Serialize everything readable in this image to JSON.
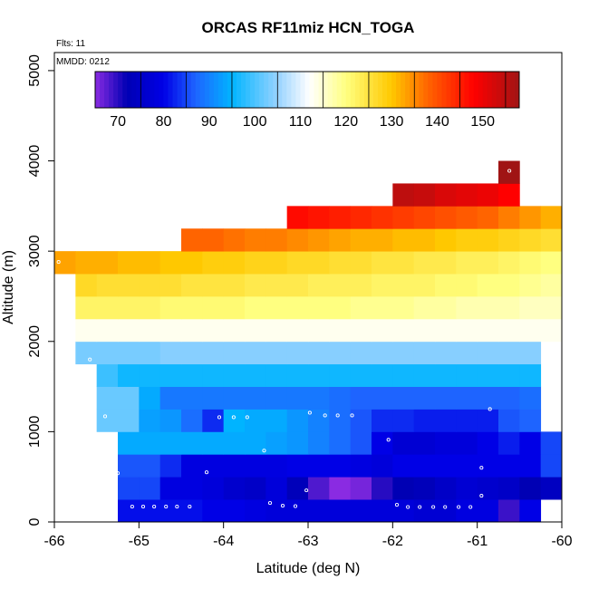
{
  "chart_data": {
    "type": "heatmap",
    "title": "ORCAS RF11miz HCN_TOGA",
    "annotations": {
      "flts": "Flts: 11",
      "mmdd": "MMDD: 0212"
    },
    "xlabel": "Latitude (deg N)",
    "ylabel": "Altitude (m)",
    "xlim": [
      -66,
      -60
    ],
    "ylim": [
      0,
      5200
    ],
    "xticks": [
      -66,
      -65,
      -64,
      -63,
      -62,
      -61,
      -60
    ],
    "xtick_labels": [
      "-66",
      "-65",
      "-64",
      "-63",
      "-62",
      "-61",
      "-60"
    ],
    "yticks": [
      0,
      1000,
      2000,
      3000,
      4000,
      5000
    ],
    "ytick_labels": [
      "0",
      "1000",
      "2000",
      "3000",
      "4000",
      "5000"
    ],
    "cell_width_deg": 0.25,
    "cell_height_m": 250,
    "colorbar": {
      "range": [
        65,
        158
      ],
      "ticks": [
        70,
        80,
        90,
        100,
        110,
        120,
        130,
        140,
        150
      ],
      "tick_labels": [
        "70",
        "80",
        "90",
        "100",
        "110",
        "120",
        "130",
        "140",
        "150"
      ],
      "placement": "top inside plot",
      "colors": [
        {
          "v": 65,
          "c": "#8a2be2"
        },
        {
          "v": 72,
          "c": "#0000b4"
        },
        {
          "v": 80,
          "c": "#0000e6"
        },
        {
          "v": 87,
          "c": "#1e64ff"
        },
        {
          "v": 95,
          "c": "#00b4ff"
        },
        {
          "v": 105,
          "c": "#96d2ff"
        },
        {
          "v": 112,
          "c": "#ffffff"
        },
        {
          "v": 120,
          "c": "#ffff80"
        },
        {
          "v": 130,
          "c": "#ffc800"
        },
        {
          "v": 138,
          "c": "#ff6400"
        },
        {
          "v": 148,
          "c": "#ff0000"
        },
        {
          "v": 158,
          "c": "#a01414"
        }
      ]
    },
    "rows": [
      {
        "alt_low": 0,
        "lat_start": -65.25,
        "values": [
          81,
          81,
          81,
          81,
          80,
          80,
          79,
          78,
          78,
          78,
          78,
          78,
          78,
          78,
          77,
          77,
          79,
          79,
          69,
          80
        ]
      },
      {
        "alt_low": 250,
        "lat_start": -65.25,
        "values": [
          85,
          85,
          79,
          79,
          78,
          76,
          75,
          78,
          73,
          68,
          65,
          66,
          70,
          72,
          73,
          75,
          77,
          76,
          75,
          72,
          74
        ]
      },
      {
        "alt_low": 500,
        "lat_start": -65.25,
        "values": [
          86,
          86,
          83,
          79,
          79,
          79,
          79,
          79,
          80,
          80,
          80,
          79,
          78,
          80,
          80,
          80,
          80,
          80,
          80,
          80,
          85
        ]
      },
      {
        "alt_low": 750,
        "lat_start": -65.25,
        "values": [
          94,
          94,
          94,
          94,
          94,
          94,
          94,
          93,
          92,
          90,
          88,
          86,
          80,
          77,
          77,
          78,
          78,
          80,
          82,
          80,
          85
        ]
      },
      {
        "alt_low": 1000,
        "lat_start": -65.5,
        "values": [
          102,
          102,
          93,
          92,
          88,
          83,
          95,
          94,
          94,
          92,
          90,
          88,
          86,
          83,
          83,
          82,
          82,
          82,
          82,
          86,
          87
        ]
      },
      {
        "alt_low": 1250,
        "lat_start": -65.5,
        "values": [
          102,
          102,
          94,
          89,
          89,
          89,
          89,
          89,
          89,
          89,
          89,
          88,
          87,
          87,
          87,
          87,
          87,
          87,
          87,
          87,
          88
        ]
      },
      {
        "alt_low": 1500,
        "lat_start": -65.5,
        "values": [
          99,
          96,
          96,
          96,
          96,
          96,
          96,
          96,
          96,
          96,
          96,
          96,
          96,
          96,
          96,
          96,
          96,
          96,
          96,
          96,
          96
        ]
      },
      {
        "alt_low": 1750,
        "lat_start": -65.75,
        "values": [
          103,
          103,
          103,
          103,
          104,
          104,
          104,
          104,
          104,
          104,
          104,
          104,
          104,
          104,
          104,
          104,
          104,
          104,
          104,
          104,
          104,
          104
        ]
      },
      {
        "alt_low": 2000,
        "lat_start": -65.75,
        "values": [
          113,
          113,
          113,
          113,
          113,
          113,
          113,
          113,
          113,
          113,
          113,
          113,
          113,
          113,
          113,
          113,
          113,
          113,
          113,
          113,
          113,
          113,
          113
        ]
      },
      {
        "alt_low": 2250,
        "lat_start": -65.75,
        "values": [
          122,
          122,
          122,
          122,
          121,
          121,
          121,
          121,
          120,
          120,
          120,
          120,
          120,
          119,
          119,
          119,
          118,
          118,
          117,
          117,
          117,
          116,
          116
        ]
      },
      {
        "alt_low": 2500,
        "lat_start": -65.75,
        "values": [
          127,
          126,
          126,
          126,
          126,
          125,
          125,
          125,
          124,
          124,
          124,
          123,
          123,
          123,
          122,
          122,
          122,
          121,
          121,
          120,
          120,
          119,
          118
        ]
      },
      {
        "alt_low": 2750,
        "lat_start": -66,
        "values": [
          133,
          132,
          132,
          131,
          131,
          130,
          130,
          129,
          129,
          128,
          128,
          127,
          127,
          126,
          126,
          125,
          125,
          124,
          124,
          123,
          123,
          122,
          121,
          120
        ]
      },
      {
        "alt_low": 3000,
        "lat_start": -64.5,
        "values": [
          138,
          138,
          137,
          136,
          136,
          135,
          134,
          133,
          132,
          132,
          131,
          131,
          130,
          129,
          129,
          128,
          127,
          126
        ]
      },
      {
        "alt_low": 3250,
        "lat_start": -63.25,
        "values": [
          147,
          146,
          145,
          144,
          143,
          142,
          141,
          140,
          139,
          138,
          136,
          134,
          132
        ]
      },
      {
        "alt_low": 3500,
        "lat_start": -62,
        "values": [
          155,
          154,
          152,
          151,
          150,
          148
        ]
      },
      {
        "alt_low": 3750,
        "lat_start": -60.75,
        "values": [
          158
        ]
      }
    ],
    "points": [
      [
        -65.08,
        170
      ],
      [
        -64.95,
        170
      ],
      [
        -64.82,
        170
      ],
      [
        -64.68,
        170
      ],
      [
        -64.55,
        170
      ],
      [
        -64.4,
        170
      ],
      [
        -63.45,
        210
      ],
      [
        -63.3,
        180
      ],
      [
        -63.15,
        175
      ],
      [
        -61.95,
        190
      ],
      [
        -61.82,
        165
      ],
      [
        -61.68,
        165
      ],
      [
        -61.52,
        165
      ],
      [
        -61.38,
        165
      ],
      [
        -61.22,
        165
      ],
      [
        -61.08,
        165
      ],
      [
        -60.95,
        290
      ],
      [
        -65.25,
        540
      ],
      [
        -64.2,
        550
      ],
      [
        -60.95,
        600
      ],
      [
        -62.05,
        910
      ],
      [
        -63.52,
        790
      ],
      [
        -63.02,
        350
      ],
      [
        -65.4,
        1170
      ],
      [
        -64.05,
        1160
      ],
      [
        -63.88,
        1160
      ],
      [
        -63.72,
        1160
      ],
      [
        -62.98,
        1210
      ],
      [
        -62.8,
        1180
      ],
      [
        -62.65,
        1180
      ],
      [
        -62.48,
        1180
      ],
      [
        -60.85,
        1250
      ],
      [
        -65.58,
        1800
      ],
      [
        -65.95,
        2880
      ],
      [
        -60.62,
        3890
      ]
    ]
  }
}
